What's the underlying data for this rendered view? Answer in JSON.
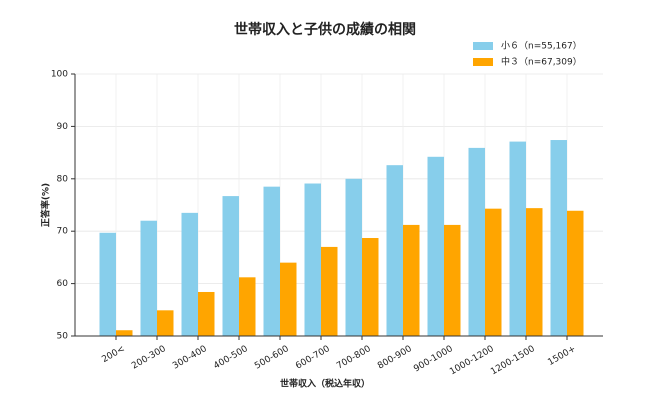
{
  "chart_data": {
    "type": "bar",
    "title": "世帯収入と子供の成績の相関",
    "x_label": "世帯収入（税込年収）",
    "y_label": "正答率(%)",
    "categories": [
      "200<",
      "200-300",
      "300-400",
      "400-500",
      "500-600",
      "600-700",
      "700-800",
      "800-900",
      "900-1000",
      "1000-1200",
      "1200-1500",
      "1500+"
    ],
    "series": [
      {
        "name": "小６（n=55,167）",
        "color": "#87ceeb",
        "values": [
          69.7,
          72.0,
          73.5,
          76.7,
          78.5,
          79.1,
          80.0,
          82.6,
          84.2,
          85.9,
          87.1,
          87.4
        ]
      },
      {
        "name": "中３（n=67,309）",
        "color": "#ffa500",
        "values": [
          51.1,
          54.9,
          58.4,
          61.2,
          64.0,
          67.0,
          68.7,
          71.2,
          71.2,
          74.3,
          74.4,
          73.9
        ]
      }
    ],
    "ylim": [
      50,
      100
    ],
    "yticks": [
      50,
      60,
      70,
      80,
      90,
      100
    ],
    "grid": true,
    "legend": "upper right"
  }
}
